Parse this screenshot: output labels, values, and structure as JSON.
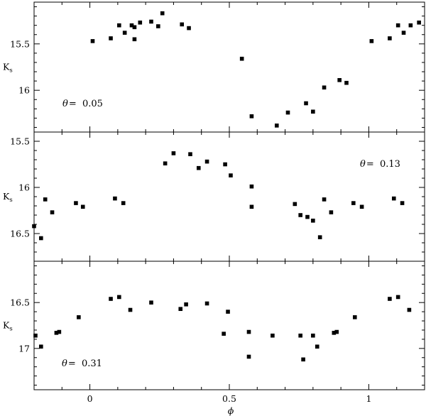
{
  "chart_data": [
    {
      "type": "scatter",
      "ylabel": "K",
      "ylabel_sub": "s",
      "annotation": {
        "symbol": "θ",
        "text": "= 0.05",
        "placement": "bottom-left"
      },
      "xlim": [
        -0.2,
        1.2
      ],
      "ylim": [
        16.45,
        15.05
      ],
      "y_inverted": true,
      "x_major_ticks": [
        0,
        0.5,
        1
      ],
      "x_tick_labels": [],
      "y_major_ticks": [
        15.5,
        16
      ],
      "y_tick_labels": [
        "15.5",
        "16"
      ],
      "series": [
        {
          "x": [
            0.01,
            0.075,
            0.105,
            0.125,
            0.15,
            0.16,
            0.16,
            0.18,
            0.22,
            0.245,
            0.26,
            0.33,
            0.355,
            0.545,
            0.58,
            0.67,
            0.71,
            0.775,
            0.8,
            0.84,
            0.895,
            0.92,
            1.01,
            1.075,
            1.105,
            1.125,
            1.15,
            1.18
          ],
          "y": [
            15.47,
            15.44,
            15.3,
            15.38,
            15.3,
            15.32,
            15.45,
            15.27,
            15.26,
            15.31,
            15.17,
            15.29,
            15.33,
            15.66,
            16.28,
            16.38,
            16.24,
            16.14,
            16.23,
            15.97,
            15.89,
            15.92,
            15.47,
            15.44,
            15.3,
            15.38,
            15.3,
            15.27
          ]
        }
      ]
    },
    {
      "type": "scatter",
      "ylabel": "K",
      "ylabel_sub": "s",
      "annotation": {
        "symbol": "θ",
        "text": "= 0.13",
        "placement": "top-right"
      },
      "xlim": [
        -0.2,
        1.2
      ],
      "ylim": [
        16.8,
        15.4
      ],
      "y_inverted": true,
      "x_major_ticks": [
        0,
        0.5,
        1
      ],
      "x_tick_labels": [],
      "y_major_ticks": [
        15.5,
        16,
        16.5
      ],
      "y_tick_labels": [
        "15.5",
        "16",
        "16.5"
      ],
      "series": [
        {
          "x": [
            -0.2,
            -0.175,
            -0.16,
            -0.135,
            -0.05,
            -0.025,
            0.09,
            0.12,
            0.27,
            0.3,
            0.36,
            0.39,
            0.42,
            0.485,
            0.505,
            0.58,
            0.58,
            0.735,
            0.755,
            0.78,
            0.8,
            0.825,
            0.84,
            0.865,
            0.945,
            0.975,
            1.09,
            1.12
          ],
          "y": [
            16.42,
            16.55,
            16.13,
            16.27,
            16.17,
            16.21,
            16.12,
            16.17,
            15.74,
            15.63,
            15.64,
            15.79,
            15.72,
            15.75,
            15.87,
            15.99,
            16.21,
            16.18,
            16.3,
            16.32,
            16.36,
            16.54,
            16.13,
            16.27,
            16.17,
            16.21,
            16.12,
            16.17
          ]
        }
      ]
    },
    {
      "type": "scatter",
      "ylabel": "K",
      "ylabel_sub": "s",
      "annotation": {
        "symbol": "θ",
        "text": "= 0.31",
        "placement": "bottom-left"
      },
      "xlim": [
        -0.2,
        1.2
      ],
      "ylim": [
        17.45,
        16.05
      ],
      "y_inverted": true,
      "x_major_ticks": [
        0,
        0.5,
        1
      ],
      "x_tick_labels": [
        "0",
        "0.5",
        "1"
      ],
      "xlabel": "ϕ",
      "y_major_ticks": [
        16.5,
        17
      ],
      "y_tick_labels": [
        "16.5",
        "17"
      ],
      "series": [
        {
          "x": [
            -0.195,
            -0.175,
            -0.12,
            -0.11,
            -0.04,
            0.075,
            0.105,
            0.145,
            0.22,
            0.325,
            0.345,
            0.42,
            0.48,
            0.495,
            0.57,
            0.57,
            0.655,
            0.755,
            0.765,
            0.8,
            0.815,
            0.875,
            0.885,
            0.95,
            1.075,
            1.105,
            1.145
          ],
          "y": [
            16.86,
            16.98,
            16.83,
            16.82,
            16.66,
            16.46,
            16.44,
            16.58,
            16.5,
            16.57,
            16.52,
            16.51,
            16.84,
            16.6,
            16.82,
            17.09,
            16.86,
            16.86,
            17.12,
            16.86,
            16.98,
            16.83,
            16.82,
            16.66,
            16.46,
            16.44,
            16.58
          ]
        }
      ]
    }
  ]
}
